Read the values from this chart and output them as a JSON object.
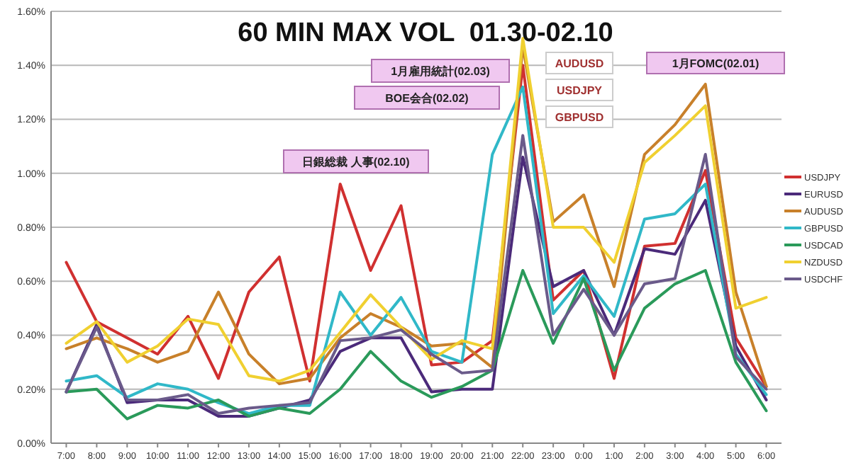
{
  "chart_data": {
    "type": "line",
    "title": "60 MIN MAX VOL  01.30-02.10",
    "categories": [
      "7:00",
      "8:00",
      "9:00",
      "10:00",
      "11:00",
      "12:00",
      "13:00",
      "14:00",
      "15:00",
      "16:00",
      "17:00",
      "18:00",
      "19:00",
      "20:00",
      "21:00",
      "22:00",
      "23:00",
      "0:00",
      "1:00",
      "2:00",
      "3:00",
      "4:00",
      "5:00",
      "6:00"
    ],
    "ylim": [
      0,
      1.6
    ],
    "yticks": [
      {
        "value": 0,
        "label": "0.00%"
      },
      {
        "value": 0.2,
        "label": "0.20%"
      },
      {
        "value": 0.4,
        "label": "0.40%"
      },
      {
        "value": 0.6,
        "label": "0.60%"
      },
      {
        "value": 0.8,
        "label": "0.80%"
      },
      {
        "value": 1.0,
        "label": "1.00%"
      },
      {
        "value": 1.2,
        "label": "1.20%"
      },
      {
        "value": 1.4,
        "label": "1.40%"
      },
      {
        "value": 1.6,
        "label": "1.60%"
      }
    ],
    "grid": "y",
    "legend": "right",
    "marker": "none",
    "series": [
      {
        "name": "USDJPY",
        "color": "#d03030",
        "values": [
          0.67,
          0.45,
          0.39,
          0.33,
          0.47,
          0.24,
          0.56,
          0.69,
          0.23,
          0.96,
          0.64,
          0.88,
          0.29,
          0.3,
          0.38,
          1.4,
          0.53,
          0.64,
          0.24,
          0.73,
          0.74,
          1.01,
          0.39,
          0.21
        ]
      },
      {
        "name": "EURUSD",
        "color": "#4b2a7a",
        "values": [
          0.19,
          0.44,
          0.15,
          0.16,
          0.16,
          0.1,
          0.1,
          0.13,
          0.16,
          0.34,
          0.39,
          0.39,
          0.19,
          0.2,
          0.2,
          1.06,
          0.58,
          0.64,
          0.4,
          0.72,
          0.7,
          0.9,
          0.36,
          0.16
        ]
      },
      {
        "name": "AUDUSD",
        "color": "#c8802a",
        "values": [
          0.35,
          0.39,
          0.35,
          0.3,
          0.34,
          0.56,
          0.33,
          0.22,
          0.24,
          0.39,
          0.48,
          0.43,
          0.36,
          0.37,
          0.28,
          1.47,
          0.82,
          0.92,
          0.58,
          1.07,
          1.18,
          1.33,
          0.56,
          0.21
        ]
      },
      {
        "name": "GBPUSD",
        "color": "#30b8c8",
        "values": [
          0.23,
          0.25,
          0.17,
          0.22,
          0.2,
          0.15,
          0.11,
          0.14,
          0.14,
          0.56,
          0.4,
          0.54,
          0.34,
          0.3,
          1.07,
          1.32,
          0.48,
          0.62,
          0.47,
          0.83,
          0.85,
          0.96,
          0.33,
          0.18
        ]
      },
      {
        "name": "USDCAD",
        "color": "#2a9a5a",
        "values": [
          0.19,
          0.2,
          0.09,
          0.14,
          0.13,
          0.16,
          0.1,
          0.13,
          0.11,
          0.2,
          0.34,
          0.23,
          0.17,
          0.21,
          0.27,
          0.64,
          0.37,
          0.61,
          0.27,
          0.5,
          0.59,
          0.64,
          0.3,
          0.12
        ]
      },
      {
        "name": "NZDUSD",
        "color": "#f0d030",
        "values": [
          0.37,
          0.45,
          0.3,
          0.36,
          0.46,
          0.44,
          0.25,
          0.23,
          0.27,
          0.41,
          0.55,
          0.43,
          0.31,
          0.38,
          0.35,
          1.5,
          0.8,
          0.8,
          0.67,
          1.04,
          1.14,
          1.25,
          0.5,
          0.54
        ]
      },
      {
        "name": "USDCHF",
        "color": "#6a5a8a",
        "values": [
          0.19,
          0.43,
          0.16,
          0.16,
          0.18,
          0.11,
          0.13,
          0.14,
          0.15,
          0.38,
          0.39,
          0.42,
          0.33,
          0.26,
          0.27,
          1.14,
          0.4,
          0.57,
          0.4,
          0.59,
          0.61,
          1.07,
          0.32,
          0.2
        ]
      }
    ],
    "annotations": [
      "1月雇用統計(02.03)",
      "BOE会合(02.02)",
      "日銀総裁 人事(02.10)",
      "AUDUSD",
      "USDJPY",
      "GBPUSD",
      "1月FOMC(02.01)"
    ]
  }
}
